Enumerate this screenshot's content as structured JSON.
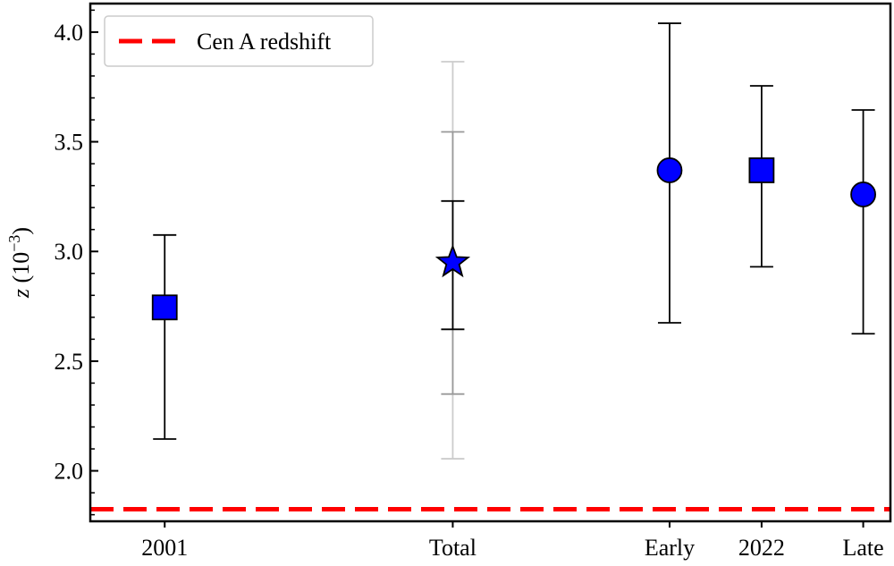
{
  "chart_data": {
    "type": "scatter",
    "title": "",
    "xlabel": "",
    "ylabel": "z (10⁻³)",
    "ylabel_parts": {
      "var": "z",
      "open": " (10",
      "exp": "−3",
      "close": ")"
    },
    "ylim": [
      1.77,
      4.13
    ],
    "yticks": [
      {
        "value": 2.0,
        "label": "2.0"
      },
      {
        "value": 2.5,
        "label": "2.5"
      },
      {
        "value": 3.0,
        "label": "3.0"
      },
      {
        "value": 3.5,
        "label": "3.5"
      },
      {
        "value": 4.0,
        "label": "4.0"
      }
    ],
    "yminor_step": 0.1,
    "xlim": [
      0,
      1
    ],
    "xticks": [
      {
        "pos": 0.093,
        "label": "2001"
      },
      {
        "pos": 0.453,
        "label": "Total"
      },
      {
        "pos": 0.724,
        "label": "Early"
      },
      {
        "pos": 0.839,
        "label": "2022"
      },
      {
        "pos": 0.966,
        "label": "Late"
      }
    ],
    "points": [
      {
        "label": "2001",
        "pos": 0.093,
        "y": 2.745,
        "err_low": 2.145,
        "err_high": 3.075,
        "marker": "square"
      },
      {
        "label": "Total",
        "pos": 0.453,
        "y": 2.95,
        "err_low": 2.645,
        "err_high": 3.23,
        "marker": "star",
        "extra_errors": [
          {
            "low": 2.35,
            "high": 3.545,
            "color": "#999999"
          },
          {
            "low": 2.055,
            "high": 3.865,
            "color": "#cccccc"
          }
        ]
      },
      {
        "label": "Early",
        "pos": 0.724,
        "y": 3.37,
        "err_low": 2.675,
        "err_high": 4.04,
        "marker": "circle"
      },
      {
        "label": "2022",
        "pos": 0.839,
        "y": 3.37,
        "err_low": 2.93,
        "err_high": 3.755,
        "marker": "square"
      },
      {
        "label": "Late",
        "pos": 0.966,
        "y": 3.26,
        "err_low": 2.625,
        "err_high": 3.645,
        "marker": "circle"
      }
    ],
    "reference_line": {
      "label": "Cen A redshift",
      "y": 1.825,
      "color": "#ff0000",
      "style": "dashed"
    },
    "legend": {
      "placement": "top-left",
      "entries": [
        "Cen A redshift"
      ]
    },
    "grid": false,
    "marker_fill": "#0000ff",
    "marker_edge": "#000000"
  }
}
